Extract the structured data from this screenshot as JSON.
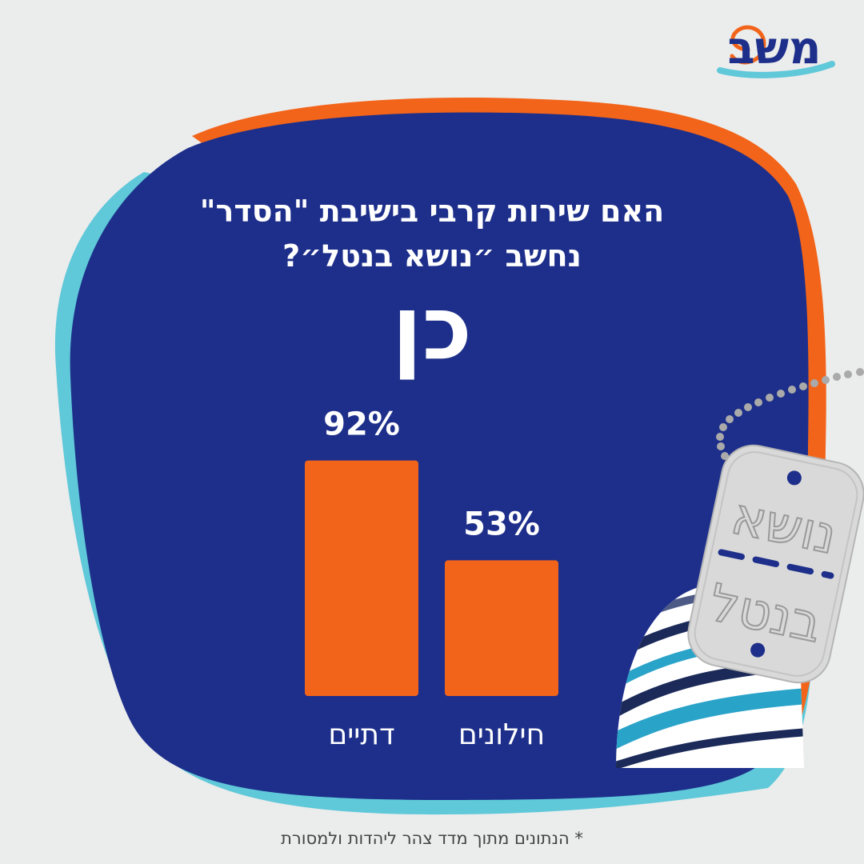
{
  "logo": {
    "text": "משב"
  },
  "header": {
    "title_line1": "האם שירות קרבי בישיבת \"הסדר\"",
    "title_line2": "נחשב ״נושא בנטל״?",
    "answer": "כן"
  },
  "tag": {
    "line1": "נושא",
    "line2": "בנטל"
  },
  "footnote": "* הנתונים מתוך מדד צהר ליהדות ולמסורת",
  "colors": {
    "background": "#ebecec",
    "panel": "#1d2f8a",
    "accent_orange": "#f26419",
    "accent_cyan": "#5fc8d9",
    "bar": "#f26419"
  },
  "chart_data": {
    "type": "bar",
    "categories": [
      "דתיים",
      "חילונים"
    ],
    "values": [
      92,
      53
    ],
    "value_labels": [
      "92%",
      "53%"
    ],
    "title": "האם שירות קרבי בישיבת \"הסדר\" נחשב ״נושא בנטל״?",
    "subtitle": "כן",
    "xlabel": "",
    "ylabel": "",
    "ylim": [
      0,
      100
    ],
    "grid": false,
    "legend": "none"
  }
}
